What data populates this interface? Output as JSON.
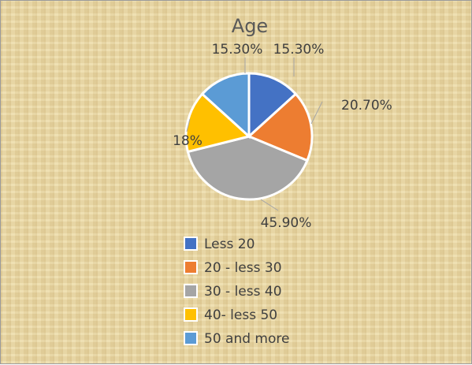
{
  "chart_data": {
    "type": "pie",
    "title": "Age",
    "categories": [
      "Less 20",
      "20 - less 30",
      "30 - less 40",
      "40- less 50",
      "50 and more"
    ],
    "values": [
      15.3,
      20.7,
      45.9,
      18,
      15.3
    ],
    "value_labels": [
      "15.30%",
      "20.70%",
      "45.90%",
      "18%",
      "15.30%"
    ],
    "colors": [
      "#4472c4",
      "#ed7d31",
      "#a5a5a5",
      "#ffc000",
      "#5b9bd5"
    ],
    "legend": "bottom"
  }
}
